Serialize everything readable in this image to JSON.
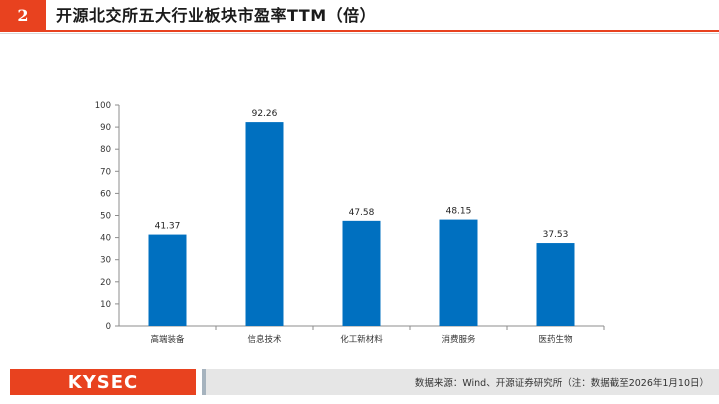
{
  "header": {
    "section_number": "2",
    "title": "开源北交所五大行业板块市盈率TTM（倍）"
  },
  "chart_data": {
    "type": "bar",
    "categories": [
      "高端装备",
      "信息技术",
      "化工新材料",
      "消费服务",
      "医药生物"
    ],
    "values": [
      41.37,
      92.26,
      47.58,
      48.15,
      37.53
    ],
    "value_labels": [
      "41.37",
      "92.26",
      "47.58",
      "48.15",
      "37.53"
    ],
    "ylim": [
      0,
      100
    ],
    "yticks": [
      "0",
      "10",
      "20",
      "30",
      "40",
      "50",
      "60",
      "70",
      "80",
      "90",
      "100"
    ],
    "grid": false,
    "bar_color": "#0070c0"
  },
  "footer": {
    "logo_text": "KYSEC",
    "source_text": "数据来源：Wind、开源证券研究所（注：数据截至2026年1月10日）"
  },
  "colors": {
    "accent": "#e8421f",
    "footer_bar": "#e6e6e6"
  }
}
